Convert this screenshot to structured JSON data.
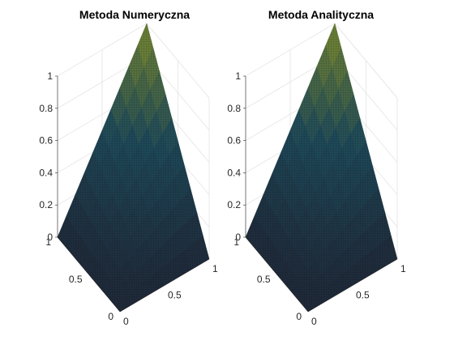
{
  "chart_data": [
    {
      "type": "surface",
      "title": "Metoda Numeryczna",
      "xlim": [
        0,
        1
      ],
      "ylim": [
        0,
        1
      ],
      "zlim": [
        0,
        1
      ],
      "x_ticks": [
        "0",
        "0.5",
        "1"
      ],
      "y_ticks": [
        "0",
        "0.5",
        "1"
      ],
      "z_ticks": [
        "0",
        "0.2",
        "0.4",
        "0.6",
        "0.8",
        "1"
      ],
      "z_function": "z = x * y",
      "grid": true,
      "colormap": "parula (dark)"
    },
    {
      "type": "surface",
      "title": "Metoda Analityczna",
      "xlim": [
        0,
        1
      ],
      "ylim": [
        0,
        1
      ],
      "zlim": [
        0,
        1
      ],
      "x_ticks": [
        "0",
        "0.5",
        "1"
      ],
      "y_ticks": [
        "0",
        "0.5",
        "1"
      ],
      "z_ticks": [
        "0",
        "0.2",
        "0.4",
        "0.6",
        "0.8",
        "1"
      ],
      "z_function": "z = x * y",
      "grid": true,
      "colormap": "parula (dark)"
    }
  ],
  "colors": {
    "surface_low": "#1f2a3a",
    "surface_mid": "#1e4a5a",
    "surface_high": "#7a8a30",
    "edge": "#000000"
  }
}
